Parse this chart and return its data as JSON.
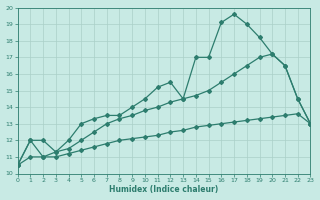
{
  "line1_x": [
    0,
    1,
    2,
    3,
    4,
    5,
    6,
    7,
    8,
    9,
    10,
    11,
    12,
    13,
    14,
    15,
    16,
    17,
    18,
    19,
    20,
    21,
    22,
    23
  ],
  "line1_y": [
    10.5,
    12.0,
    11.0,
    11.3,
    12.0,
    13.0,
    13.3,
    13.5,
    13.5,
    14.0,
    14.5,
    15.2,
    15.5,
    14.5,
    17.0,
    17.0,
    19.1,
    19.6,
    19.0,
    18.2,
    17.2,
    16.5,
    14.5,
    13.0
  ],
  "line2_x": [
    0,
    1,
    2,
    3,
    4,
    5,
    6,
    7,
    8,
    9,
    10,
    11,
    12,
    13,
    14,
    15,
    16,
    17,
    18,
    19,
    20,
    21,
    22,
    23
  ],
  "line2_y": [
    10.5,
    12.0,
    12.0,
    11.3,
    11.5,
    12.0,
    12.5,
    13.0,
    13.3,
    13.5,
    13.8,
    14.0,
    14.3,
    14.5,
    14.7,
    15.0,
    15.5,
    16.0,
    16.5,
    17.0,
    17.2,
    16.5,
    14.5,
    13.0
  ],
  "line3_x": [
    0,
    1,
    2,
    3,
    4,
    5,
    6,
    7,
    8,
    9,
    10,
    11,
    12,
    13,
    14,
    15,
    16,
    17,
    18,
    19,
    20,
    21,
    22,
    23
  ],
  "line3_y": [
    10.5,
    11.0,
    11.0,
    11.0,
    11.2,
    11.4,
    11.6,
    11.8,
    12.0,
    12.1,
    12.2,
    12.3,
    12.5,
    12.6,
    12.8,
    12.9,
    13.0,
    13.1,
    13.2,
    13.3,
    13.4,
    13.5,
    13.6,
    13.0
  ],
  "line_color": "#2d7d6e",
  "bg_color": "#c8eae4",
  "grid_color": "#aad0c8",
  "xlabel": "Humidex (Indice chaleur)",
  "xlim": [
    0,
    23
  ],
  "ylim": [
    10,
    20
  ],
  "yticks": [
    10,
    11,
    12,
    13,
    14,
    15,
    16,
    17,
    18,
    19,
    20
  ],
  "xticks": [
    0,
    1,
    2,
    3,
    4,
    5,
    6,
    7,
    8,
    9,
    10,
    11,
    12,
    13,
    14,
    15,
    16,
    17,
    18,
    19,
    20,
    21,
    22,
    23
  ],
  "marker": "D",
  "markersize": 2.0,
  "linewidth": 0.9
}
